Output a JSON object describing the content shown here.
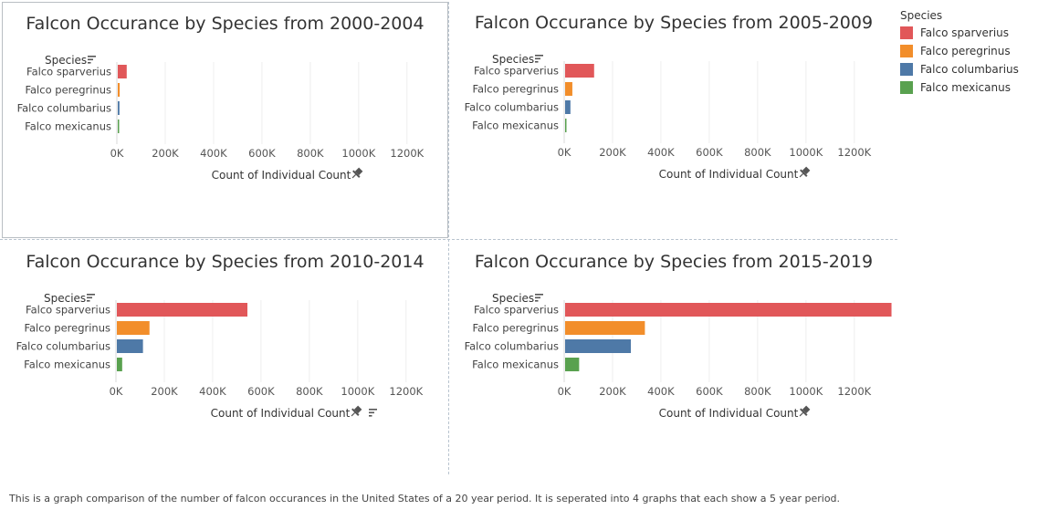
{
  "legend": {
    "title": "Species",
    "items": [
      {
        "label": "Falco sparverius",
        "color": "#e15759"
      },
      {
        "label": "Falco peregrinus",
        "color": "#f28e2b"
      },
      {
        "label": "Falco columbarius",
        "color": "#4e79a7"
      },
      {
        "label": "Falco mexicanus",
        "color": "#59a14f"
      }
    ]
  },
  "caption": "This is a graph comparison of the number of falcon occurances in the United States of a 20 year period. It is seperated into 4 graphs that each show a 5 year period.",
  "chart_data": [
    {
      "type": "bar",
      "orientation": "horizontal",
      "title": "Falcon Occurance by Species from 2000-2004",
      "ylabel": "Species",
      "xlabel": "Count of Individual Count",
      "categories": [
        "Falco sparverius",
        "Falco peregrinus",
        "Falco columbarius",
        "Falco mexicanus"
      ],
      "values": [
        37000,
        8000,
        7000,
        500
      ],
      "colors": [
        "#e15759",
        "#f28e2b",
        "#4e79a7",
        "#59a14f"
      ],
      "xticks": [
        "0K",
        "200K",
        "400K",
        "600K",
        "800K",
        "1000K",
        "1200K"
      ],
      "xlim": [
        0,
        1382000
      ],
      "grid": true
    },
    {
      "type": "bar",
      "orientation": "horizontal",
      "title": "Falcon Occurance by Species from 2005-2009",
      "ylabel": "Species",
      "xlabel": "Count of Individual Count",
      "categories": [
        "Falco sparverius",
        "Falco peregrinus",
        "Falco columbarius",
        "Falco mexicanus"
      ],
      "values": [
        120000,
        30000,
        22000,
        4000
      ],
      "colors": [
        "#e15759",
        "#f28e2b",
        "#4e79a7",
        "#59a14f"
      ],
      "xticks": [
        "0K",
        "200K",
        "400K",
        "600K",
        "800K",
        "1000K",
        "1200K"
      ],
      "xlim": [
        0,
        1382000
      ],
      "grid": true
    },
    {
      "type": "bar",
      "orientation": "horizontal",
      "title": "Falcon Occurance by Species from 2010-2014",
      "ylabel": "Species",
      "xlabel": "Count of Individual Count",
      "categories": [
        "Falco sparverius",
        "Falco peregrinus",
        "Falco columbarius",
        "Falco mexicanus"
      ],
      "values": [
        540000,
        135000,
        108000,
        22000
      ],
      "colors": [
        "#e15759",
        "#f28e2b",
        "#4e79a7",
        "#59a14f"
      ],
      "xticks": [
        "0K",
        "200K",
        "400K",
        "600K",
        "800K",
        "1000K",
        "1200K"
      ],
      "xlim": [
        0,
        1382000
      ],
      "grid": true
    },
    {
      "type": "bar",
      "orientation": "horizontal",
      "title": "Falcon Occurance by Species from 2015-2019",
      "ylabel": "Species",
      "xlabel": "Count of Individual Count",
      "categories": [
        "Falco sparverius",
        "Falco peregrinus",
        "Falco columbarius",
        "Falco mexicanus"
      ],
      "values": [
        1350000,
        330000,
        272000,
        58000
      ],
      "colors": [
        "#e15759",
        "#f28e2b",
        "#4e79a7",
        "#59a14f"
      ],
      "xticks": [
        "0K",
        "200K",
        "400K",
        "600K",
        "800K",
        "1000K",
        "1200K"
      ],
      "xlim": [
        0,
        1382000
      ],
      "grid": true
    }
  ]
}
